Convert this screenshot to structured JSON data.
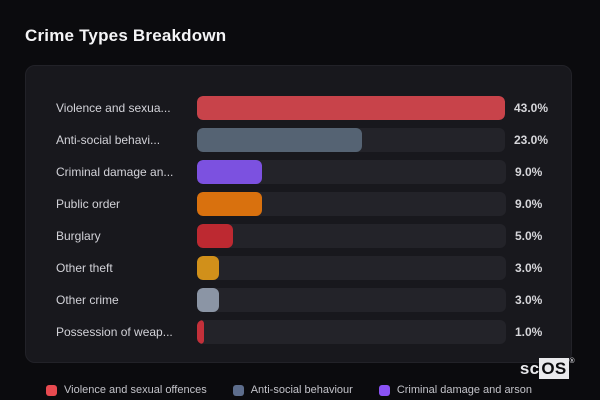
{
  "title": "Crime Types Breakdown",
  "chart_data": {
    "type": "bar",
    "orientation": "horizontal",
    "title": "Crime Types Breakdown",
    "categories": [
      "Violence and sexua...",
      "Anti-social behavi...",
      "Criminal damage an...",
      "Public order",
      "Burglary",
      "Other theft",
      "Other crime",
      "Possession of weap..."
    ],
    "values": [
      43.0,
      23.0,
      9.0,
      9.0,
      5.0,
      3.0,
      3.0,
      1.0
    ],
    "value_labels": [
      "43.0%",
      "23.0%",
      "9.0%",
      "9.0%",
      "5.0%",
      "3.0%",
      "3.0%",
      "1.0%"
    ],
    "bar_colors": [
      "#c8434a",
      "#556373",
      "#7c51e0",
      "#d9710e",
      "#bd2931",
      "#d1901a",
      "#8b95a5",
      "#c3303a"
    ],
    "track_color": "#232329",
    "x_max": 43.0,
    "unit": "%",
    "grid": false,
    "legend_position": "bottom"
  },
  "legend": {
    "items": [
      {
        "label": "Violence and sexual offences",
        "color": "#e84a50"
      },
      {
        "label": "Anti-social behaviour",
        "color": "#5d6d8c"
      },
      {
        "label": "Criminal damage and arson",
        "color": "#8a52f5"
      }
    ]
  },
  "watermark": {
    "text_sc": "sc",
    "text_os": "OS",
    "reg": "®"
  },
  "colors": {
    "page_bg": "#0b0b0e",
    "card_bg": "#18181d",
    "title_text": "#f4f4f6",
    "label_text": "#d2d2d8",
    "value_text": "#d6d6da",
    "legend_text": "#c3c3c9"
  }
}
